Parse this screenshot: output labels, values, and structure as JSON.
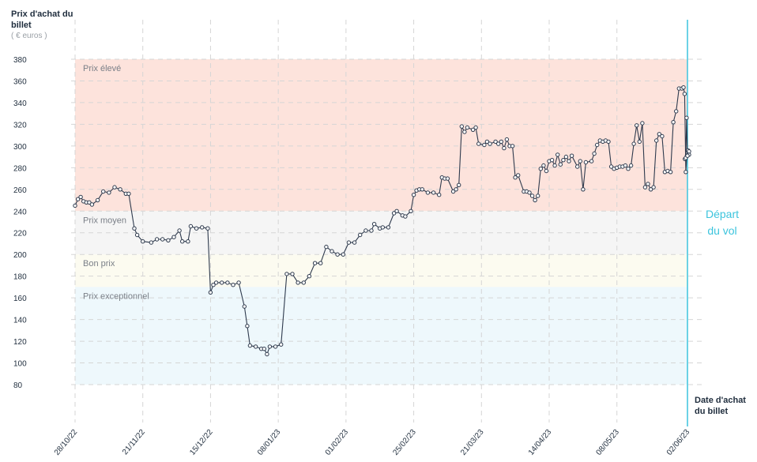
{
  "axis": {
    "y_title": "Prix d'achat du billet",
    "y_unit": "( € euros )",
    "x_title": "Date d'achat du billet",
    "departure_label": "Départ du vol"
  },
  "zones": [
    {
      "label": "Prix élevé",
      "from": 240,
      "to": 380,
      "color": "#fde3dc"
    },
    {
      "label": "Prix moyen",
      "from": 200,
      "to": 240,
      "color": "#f5f5f5"
    },
    {
      "label": "Bon prix",
      "from": 170,
      "to": 200,
      "color": "#fcfbf0"
    },
    {
      "label": "Prix exceptionnel",
      "from": 80,
      "to": 170,
      "color": "#eef8fc"
    }
  ],
  "colors": {
    "line": "#2e3a4d",
    "marker_fill": "#ffffff",
    "grid": "#d5d5d5",
    "departure_line": "#3cc4dd"
  },
  "chart_data": {
    "type": "line",
    "title": "",
    "xlabel": "Date d'achat du billet",
    "ylabel": "Prix d'achat du billet",
    "ylim": [
      80,
      380
    ],
    "yticks": [
      80,
      100,
      120,
      140,
      160,
      180,
      200,
      220,
      240,
      260,
      280,
      300,
      320,
      340,
      360,
      380
    ],
    "xlim": [
      "2022-10-28",
      "2023-06-02"
    ],
    "xticks": [
      "28/10/22",
      "21/11/22",
      "15/12/22",
      "08/01/23",
      "01/02/23",
      "25/02/23",
      "21/03/23",
      "14/04/23",
      "08/05/23",
      "02/06/23"
    ],
    "departure_date": "2023-06-02",
    "grid": true,
    "series": [
      {
        "values": [
          [
            "2022-10-28",
            245
          ],
          [
            "2022-10-29",
            251
          ],
          [
            "2022-10-30",
            253
          ],
          [
            "2022-10-31",
            249
          ],
          [
            "2022-11-01",
            248
          ],
          [
            "2022-11-02",
            248
          ],
          [
            "2022-11-03",
            246
          ],
          [
            "2022-11-05",
            250
          ],
          [
            "2022-11-07",
            258
          ],
          [
            "2022-11-09",
            257
          ],
          [
            "2022-11-11",
            262
          ],
          [
            "2022-11-13",
            260
          ],
          [
            "2022-11-15",
            256
          ],
          [
            "2022-11-16",
            256
          ],
          [
            "2022-11-18",
            224
          ],
          [
            "2022-11-19",
            218
          ],
          [
            "2022-11-21",
            212
          ],
          [
            "2022-11-24",
            211
          ],
          [
            "2022-11-26",
            214
          ],
          [
            "2022-11-28",
            214
          ],
          [
            "2022-11-30",
            213
          ],
          [
            "2022-12-02",
            216
          ],
          [
            "2022-12-04",
            222
          ],
          [
            "2022-12-05",
            212
          ],
          [
            "2022-12-07",
            212
          ],
          [
            "2022-12-08",
            226
          ],
          [
            "2022-12-10",
            224
          ],
          [
            "2022-12-12",
            225
          ],
          [
            "2022-12-14",
            224
          ],
          [
            "2022-12-15",
            165
          ],
          [
            "2022-12-16",
            172
          ],
          [
            "2022-12-17",
            174
          ],
          [
            "2022-12-19",
            174
          ],
          [
            "2022-12-21",
            174
          ],
          [
            "2022-12-23",
            172
          ],
          [
            "2022-12-25",
            174
          ],
          [
            "2022-12-27",
            152
          ],
          [
            "2022-12-28",
            134
          ],
          [
            "2022-12-29",
            116
          ],
          [
            "2022-12-31",
            115
          ],
          [
            "2023-01-02",
            113
          ],
          [
            "2023-01-03",
            113
          ],
          [
            "2023-01-04",
            108
          ],
          [
            "2023-01-05",
            115
          ],
          [
            "2023-01-07",
            115
          ],
          [
            "2023-01-09",
            117
          ],
          [
            "2023-01-11",
            182
          ],
          [
            "2023-01-13",
            182
          ],
          [
            "2023-01-15",
            174
          ],
          [
            "2023-01-17",
            174
          ],
          [
            "2023-01-19",
            180
          ],
          [
            "2023-01-21",
            192
          ],
          [
            "2023-01-23",
            192
          ],
          [
            "2023-01-25",
            207
          ],
          [
            "2023-01-27",
            203
          ],
          [
            "2023-01-29",
            200
          ],
          [
            "2023-01-31",
            200
          ],
          [
            "2023-02-02",
            211
          ],
          [
            "2023-02-04",
            211
          ],
          [
            "2023-02-06",
            218
          ],
          [
            "2023-02-08",
            222
          ],
          [
            "2023-02-10",
            222
          ],
          [
            "2023-02-11",
            228
          ],
          [
            "2023-02-13",
            224
          ],
          [
            "2023-02-14",
            225
          ],
          [
            "2023-02-16",
            225
          ],
          [
            "2023-02-18",
            238
          ],
          [
            "2023-02-19",
            240
          ],
          [
            "2023-02-21",
            236
          ],
          [
            "2023-02-22",
            235
          ],
          [
            "2023-02-24",
            240
          ],
          [
            "2023-02-25",
            255
          ],
          [
            "2023-02-26",
            259
          ],
          [
            "2023-02-27",
            260
          ],
          [
            "2023-02-28",
            260
          ],
          [
            "2023-03-02",
            257
          ],
          [
            "2023-03-04",
            257
          ],
          [
            "2023-03-06",
            255
          ],
          [
            "2023-03-07",
            271
          ],
          [
            "2023-03-08",
            270
          ],
          [
            "2023-03-09",
            270
          ],
          [
            "2023-03-11",
            258
          ],
          [
            "2023-03-12",
            260
          ],
          [
            "2023-03-13",
            264
          ],
          [
            "2023-03-14",
            318
          ],
          [
            "2023-03-15",
            313
          ],
          [
            "2023-03-16",
            317
          ],
          [
            "2023-03-18",
            315
          ],
          [
            "2023-03-19",
            317
          ],
          [
            "2023-03-20",
            302
          ],
          [
            "2023-03-22",
            301
          ],
          [
            "2023-03-23",
            304
          ],
          [
            "2023-03-24",
            302
          ],
          [
            "2023-03-26",
            304
          ],
          [
            "2023-03-27",
            302
          ],
          [
            "2023-03-28",
            304
          ],
          [
            "2023-03-29",
            298
          ],
          [
            "2023-03-30",
            306
          ],
          [
            "2023-03-31",
            300
          ],
          [
            "2023-04-01",
            300
          ],
          [
            "2023-04-02",
            271
          ],
          [
            "2023-04-03",
            273
          ],
          [
            "2023-04-05",
            258
          ],
          [
            "2023-04-06",
            258
          ],
          [
            "2023-04-07",
            257
          ],
          [
            "2023-04-08",
            254
          ],
          [
            "2023-04-09",
            250
          ],
          [
            "2023-04-10",
            254
          ],
          [
            "2023-04-11",
            279
          ],
          [
            "2023-04-12",
            282
          ],
          [
            "2023-04-13",
            277
          ],
          [
            "2023-04-14",
            286
          ],
          [
            "2023-04-15",
            287
          ],
          [
            "2023-04-16",
            282
          ],
          [
            "2023-04-17",
            292
          ],
          [
            "2023-04-18",
            283
          ],
          [
            "2023-04-19",
            287
          ],
          [
            "2023-04-20",
            290
          ],
          [
            "2023-04-21",
            286
          ],
          [
            "2023-04-22",
            291
          ],
          [
            "2023-04-24",
            281
          ],
          [
            "2023-04-25",
            286
          ],
          [
            "2023-04-26",
            260
          ],
          [
            "2023-04-27",
            285
          ],
          [
            "2023-04-29",
            286
          ],
          [
            "2023-04-30",
            293
          ],
          [
            "2023-05-01",
            301
          ],
          [
            "2023-05-02",
            305
          ],
          [
            "2023-05-03",
            304
          ],
          [
            "2023-05-04",
            305
          ],
          [
            "2023-05-05",
            304
          ],
          [
            "2023-05-06",
            281
          ],
          [
            "2023-05-07",
            279
          ],
          [
            "2023-05-08",
            280
          ],
          [
            "2023-05-09",
            281
          ],
          [
            "2023-05-10",
            281
          ],
          [
            "2023-05-11",
            282
          ],
          [
            "2023-05-12",
            279
          ],
          [
            "2023-05-13",
            282
          ],
          [
            "2023-05-14",
            302
          ],
          [
            "2023-05-15",
            319
          ],
          [
            "2023-05-16",
            304
          ],
          [
            "2023-05-17",
            321
          ],
          [
            "2023-05-18",
            262
          ],
          [
            "2023-05-19",
            265
          ],
          [
            "2023-05-20",
            260
          ],
          [
            "2023-05-21",
            262
          ],
          [
            "2023-05-22",
            305
          ],
          [
            "2023-05-23",
            311
          ],
          [
            "2023-05-24",
            309
          ],
          [
            "2023-05-25",
            276
          ],
          [
            "2023-05-26",
            277
          ],
          [
            "2023-05-27",
            276
          ],
          [
            "2023-05-28",
            322
          ],
          [
            "2023-05-29",
            332
          ],
          [
            "2023-05-30",
            353
          ],
          [
            "2023-05-31",
            353
          ],
          [
            "2023-06-01",
            354
          ],
          [
            "2023-06-01",
            348
          ],
          [
            "2023-06-01",
            276
          ],
          [
            "2023-06-01",
            291
          ],
          [
            "2023-06-01",
            296
          ],
          [
            "2023-06-01",
            292
          ],
          [
            "2023-06-01",
            295
          ],
          [
            "2023-06-02",
            288
          ],
          [
            "2023-06-02",
            289
          ],
          [
            "2023-06-02",
            326
          ],
          [
            "2023-06-02",
            291
          ]
        ]
      }
    ]
  }
}
